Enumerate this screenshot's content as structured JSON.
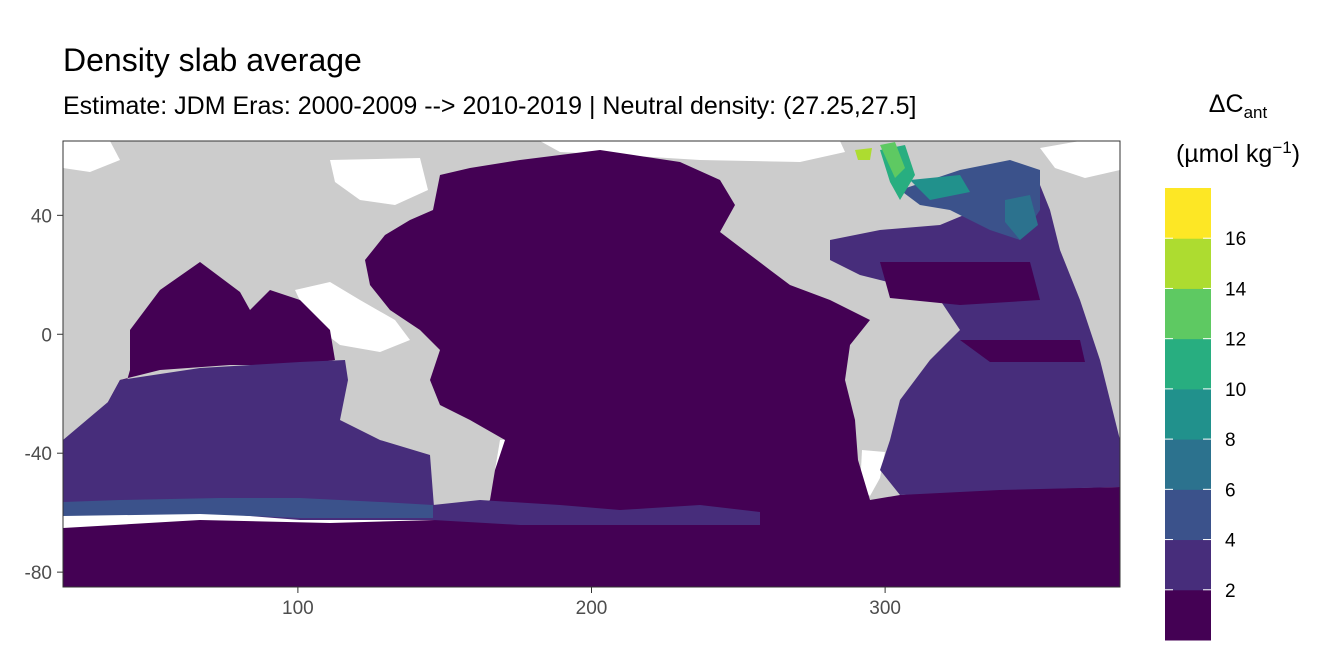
{
  "title": "Density slab average",
  "subtitle": "Estimate: JDM Eras: 2000-2009 --> 2010-2019 | Neutral density: (27.25,27.5]",
  "chart_data": {
    "type": "heatmap",
    "xlim": [
      20,
      380
    ],
    "ylim": [
      -85,
      65
    ],
    "x_ticks": [
      100,
      200,
      300
    ],
    "y_ticks": [
      40,
      0,
      -40,
      -80
    ],
    "grid": false,
    "legend": {
      "title_main": "ΔC",
      "title_sub": "ant",
      "units_pre": "(µmol kg",
      "units_sup": "−1",
      "units_post": ")",
      "placement": "right",
      "breaks": [
        16,
        14,
        12,
        10,
        8,
        6,
        4,
        2
      ],
      "colors": [
        "#440154",
        "#472d7b",
        "#3b528b",
        "#2c728e",
        "#21918c",
        "#28ae80",
        "#5ec962",
        "#addc30",
        "#fde725"
      ]
    },
    "colors": {
      "land": "#cccccc",
      "no_data": "#ffffff"
    }
  }
}
